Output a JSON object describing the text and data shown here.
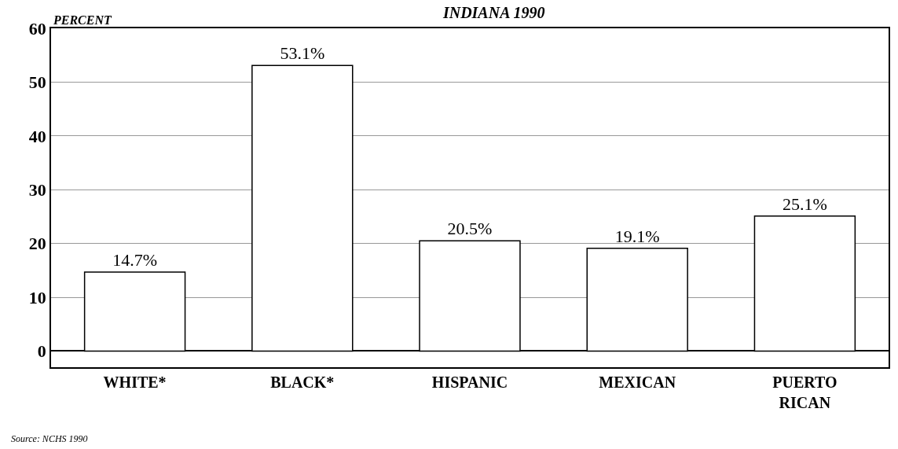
{
  "chart_data": {
    "type": "bar",
    "title": "INDIANA 1990",
    "ylabel": "PERCENT",
    "categories": [
      "WHITE*",
      "BLACK*",
      "HISPANIC",
      "MEXICAN",
      "PUERTO RICAN"
    ],
    "values": [
      14.7,
      53.1,
      20.5,
      19.1,
      25.1
    ],
    "value_labels": [
      "14.7%",
      "53.1%",
      "20.5%",
      "19.1%",
      "25.1%"
    ],
    "color": "#ffffff",
    "ylim": [
      -3,
      60
    ],
    "yticks": [
      0,
      10,
      20,
      30,
      40,
      50,
      60
    ],
    "grid": "y",
    "annotations": [
      "Source: NCHS 1990"
    ]
  }
}
